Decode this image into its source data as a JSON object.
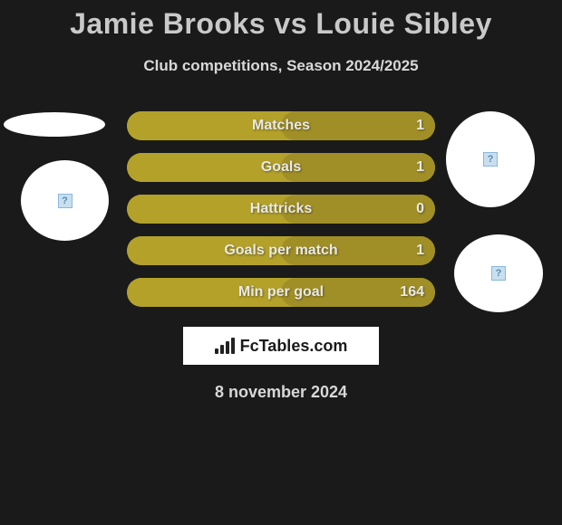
{
  "title": "Jamie Brooks vs Louie Sibley",
  "subtitle": "Club competitions, Season 2024/2025",
  "date": "8 november 2024",
  "footer_brand": "FcTables.com",
  "bar_color_left": "#b3a12a",
  "bar_color_right": "#a08f26",
  "bar_bg": "#b3a12a",
  "stats": [
    {
      "label": "Matches",
      "right_value": "1",
      "left_width_pct": 50,
      "right_width_pct": 50
    },
    {
      "label": "Goals",
      "right_value": "1",
      "left_width_pct": 50,
      "right_width_pct": 50
    },
    {
      "label": "Hattricks",
      "right_value": "0",
      "left_width_pct": 50,
      "right_width_pct": 50
    },
    {
      "label": "Goals per match",
      "right_value": "1",
      "left_width_pct": 50,
      "right_width_pct": 50
    },
    {
      "label": "Min per goal",
      "right_value": "164",
      "left_width_pct": 50,
      "right_width_pct": 50
    }
  ],
  "circles": {
    "topleft_has_icon": false,
    "left_has_icon": true,
    "topright_has_icon": true,
    "right_has_icon": true
  }
}
